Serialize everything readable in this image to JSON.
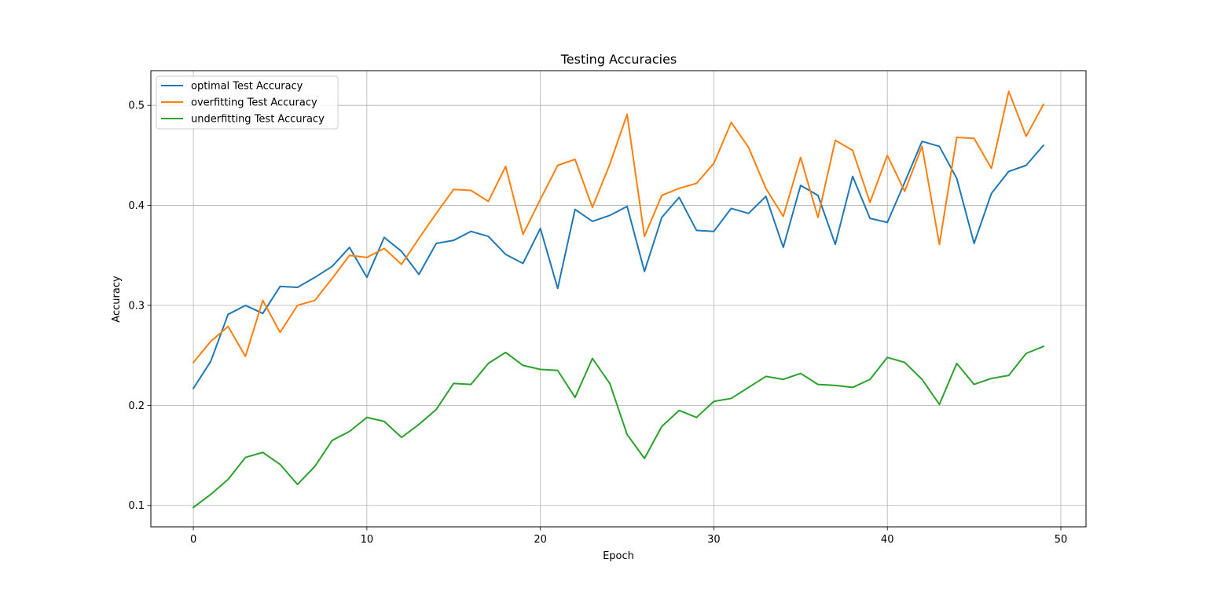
{
  "chart_data": {
    "type": "line",
    "title": "Testing Accuracies",
    "xlabel": "Epoch",
    "ylabel": "Accuracy",
    "xlim": [
      -2.45,
      51.45
    ],
    "ylim": [
      0.0786,
      0.5347
    ],
    "xticks": [
      0,
      10,
      20,
      30,
      40,
      50
    ],
    "yticks": [
      0.1,
      0.2,
      0.3,
      0.4,
      0.5
    ],
    "xtick_labels": [
      "0",
      "10",
      "20",
      "30",
      "40",
      "50"
    ],
    "ytick_labels": [
      "0.1",
      "0.2",
      "0.3",
      "0.4",
      "0.5"
    ],
    "grid": true,
    "legend_position": "upper-left",
    "x": [
      0,
      1,
      2,
      3,
      4,
      5,
      6,
      7,
      8,
      9,
      10,
      11,
      12,
      13,
      14,
      15,
      16,
      17,
      18,
      19,
      20,
      21,
      22,
      23,
      24,
      25,
      26,
      27,
      28,
      29,
      30,
      31,
      32,
      33,
      34,
      35,
      36,
      37,
      38,
      39,
      40,
      41,
      42,
      43,
      44,
      45,
      46,
      47,
      48,
      49
    ],
    "series": [
      {
        "name": "optimal Test Accuracy",
        "color": "#1f77b4",
        "values": [
          0.217,
          0.244,
          0.291,
          0.3,
          0.292,
          0.319,
          0.318,
          0.328,
          0.339,
          0.358,
          0.328,
          0.368,
          0.354,
          0.331,
          0.362,
          0.365,
          0.374,
          0.369,
          0.351,
          0.342,
          0.377,
          0.317,
          0.396,
          0.384,
          0.39,
          0.399,
          0.334,
          0.388,
          0.408,
          0.375,
          0.374,
          0.397,
          0.392,
          0.409,
          0.358,
          0.42,
          0.41,
          0.361,
          0.429,
          0.387,
          0.383,
          0.423,
          0.464,
          0.459,
          0.427,
          0.362,
          0.412,
          0.434,
          0.44,
          0.46
        ]
      },
      {
        "name": "overfitting Test Accuracy",
        "color": "#ff7f0e",
        "values": [
          0.243,
          0.264,
          0.279,
          0.249,
          0.305,
          0.273,
          0.3,
          0.305,
          0.327,
          0.35,
          0.348,
          0.357,
          0.341,
          0.367,
          0.392,
          0.416,
          0.415,
          0.404,
          0.439,
          0.371,
          0.406,
          0.44,
          0.446,
          0.398,
          0.441,
          0.491,
          0.369,
          0.41,
          0.417,
          0.422,
          0.442,
          0.483,
          0.458,
          0.417,
          0.389,
          0.448,
          0.388,
          0.465,
          0.455,
          0.403,
          0.45,
          0.414,
          0.459,
          0.361,
          0.468,
          0.467,
          0.437,
          0.514,
          0.469,
          0.501
        ]
      },
      {
        "name": "underfitting Test Accuracy",
        "color": "#2ca02c",
        "values": [
          0.098,
          0.111,
          0.126,
          0.148,
          0.153,
          0.141,
          0.121,
          0.139,
          0.165,
          0.174,
          0.188,
          0.184,
          0.168,
          0.181,
          0.196,
          0.222,
          0.221,
          0.242,
          0.253,
          0.24,
          0.236,
          0.235,
          0.208,
          0.247,
          0.222,
          0.171,
          0.147,
          0.179,
          0.195,
          0.188,
          0.204,
          0.207,
          0.218,
          0.229,
          0.226,
          0.232,
          0.221,
          0.22,
          0.218,
          0.226,
          0.248,
          0.243,
          0.226,
          0.201,
          0.242,
          0.221,
          0.227,
          0.23,
          0.252,
          0.259
        ]
      }
    ]
  }
}
